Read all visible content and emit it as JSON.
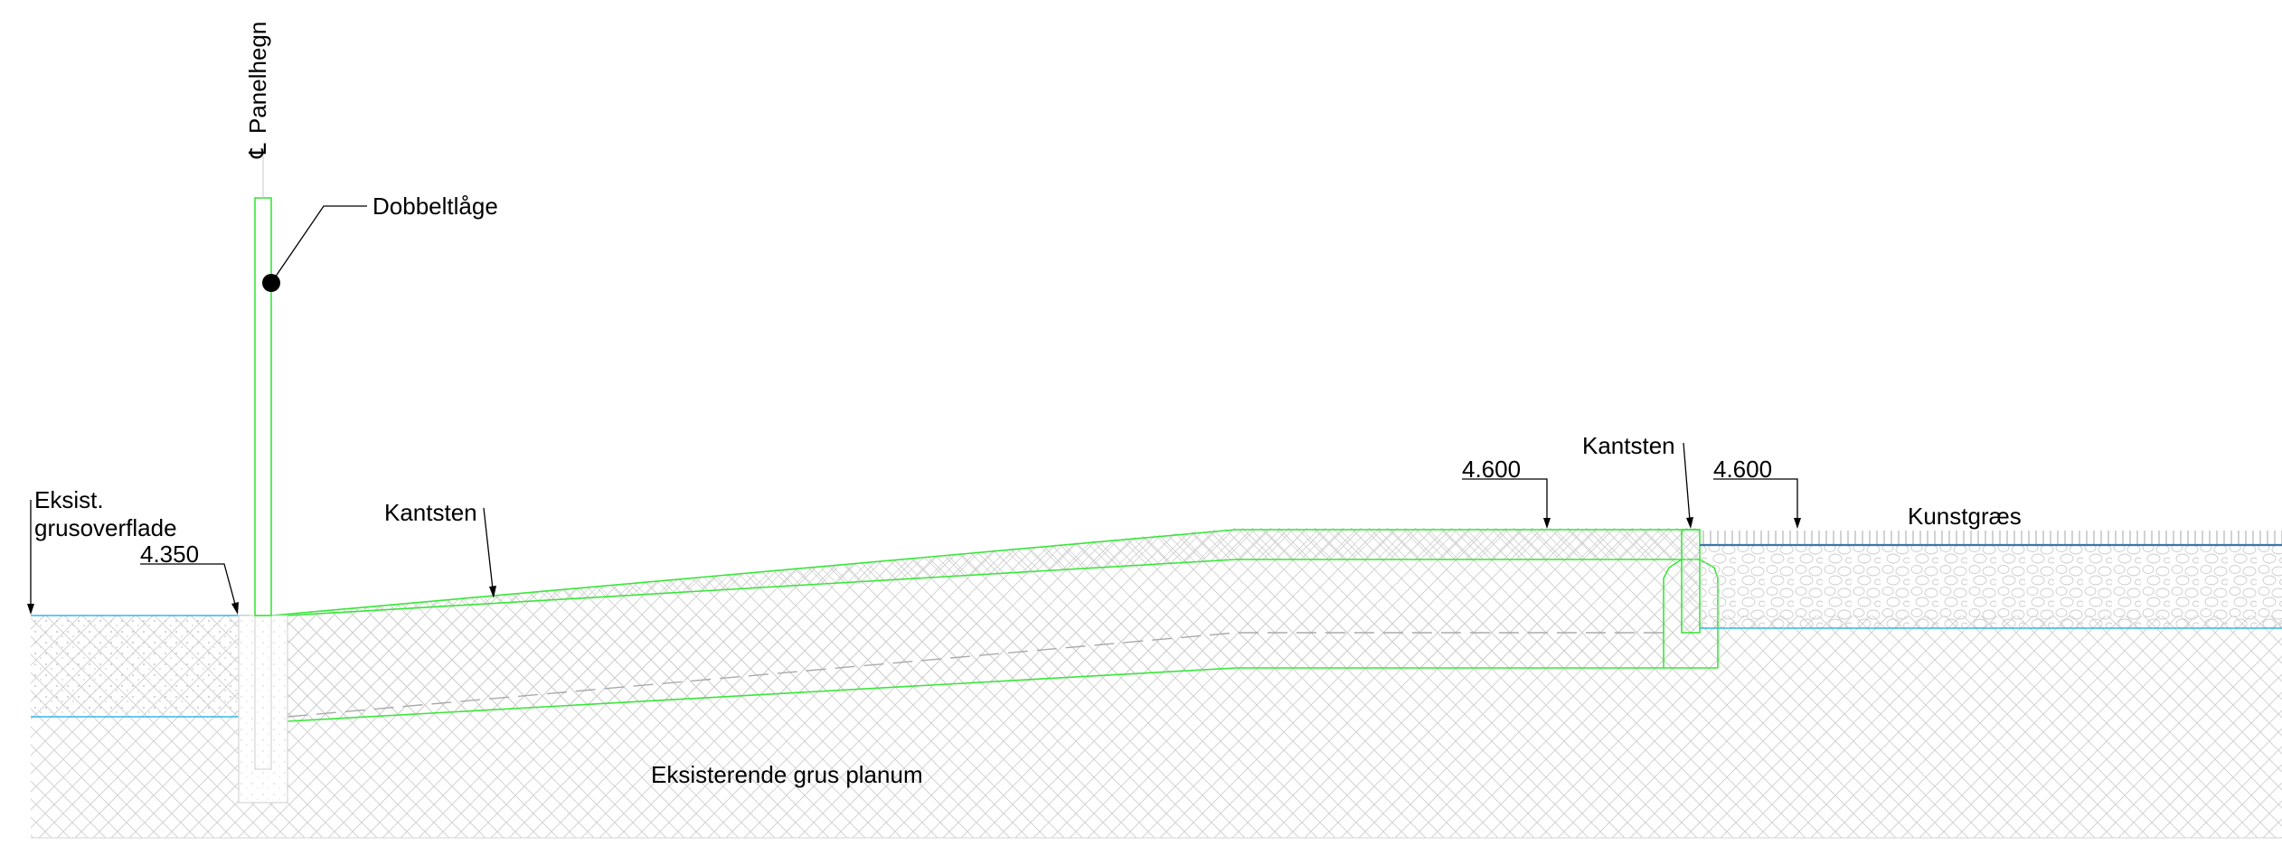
{
  "labels": {
    "panelhegn": "Panelhegn",
    "centerline_symbol": "℄",
    "dobbeltlaage": "Dobbeltlåge",
    "eksist_line1": "Eksist.",
    "eksist_line2": "grusoverflade",
    "level_left": "4.350",
    "kantsten_left": "Kantsten",
    "level_mid": "4.600",
    "kantsten_right": "Kantsten",
    "level_right": "4.600",
    "kunstgraes": "Kunstgræs",
    "eksisterende_planum": "Eksisterende grus planum"
  },
  "colors": {
    "construction_line": "#39e639",
    "surface_line": "#34b8e6",
    "hatch": "#c8c8c8",
    "text": "#000000"
  }
}
